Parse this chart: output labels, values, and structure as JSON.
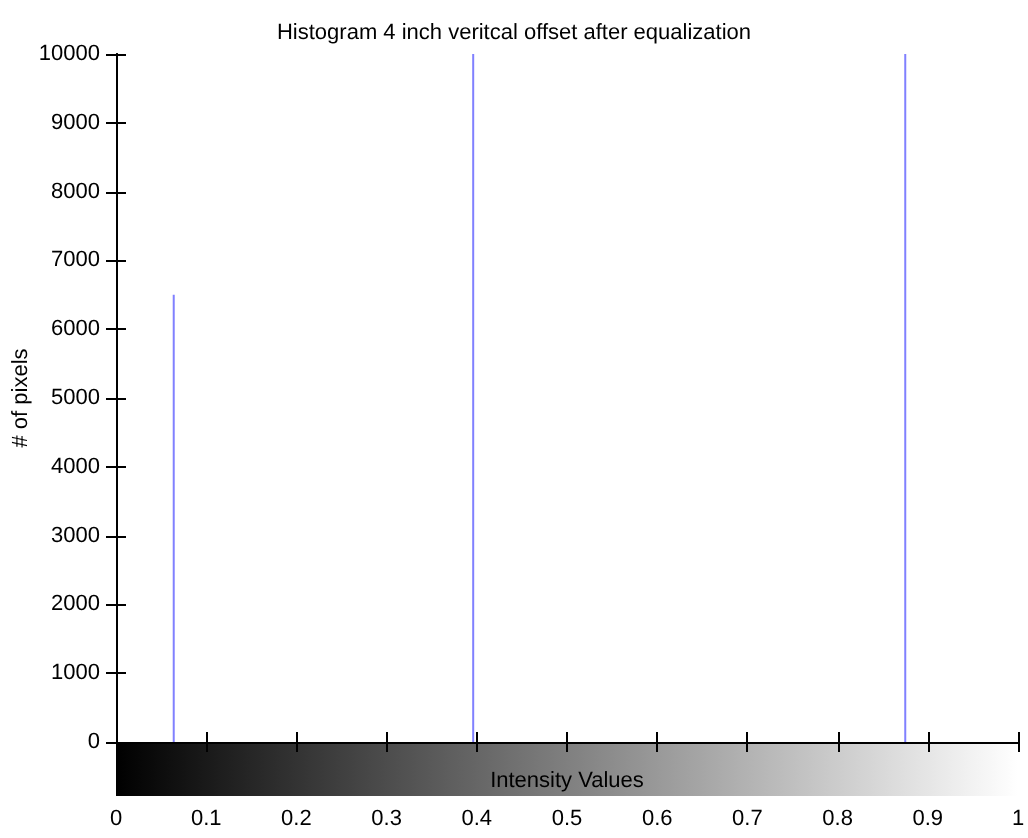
{
  "chart_data": {
    "type": "bar",
    "title": "Histogram 4 inch veritcal offset after equalization",
    "xlabel": "Intensity Values",
    "ylabel": "# of pixels",
    "x": [
      0.064,
      0.396,
      0.875
    ],
    "values": [
      6500,
      10000,
      10000
    ],
    "color": "#8080ff",
    "xlim": [
      0,
      1
    ],
    "xticks": [
      0,
      0.1,
      0.2,
      0.3,
      0.4,
      0.5,
      0.6,
      0.7,
      0.8,
      0.9,
      1
    ],
    "ylim": [
      0,
      10000
    ],
    "yticks": [
      0,
      1000,
      2000,
      3000,
      4000,
      5000,
      6000,
      7000,
      8000,
      9000,
      10000
    ],
    "grid": false
  }
}
